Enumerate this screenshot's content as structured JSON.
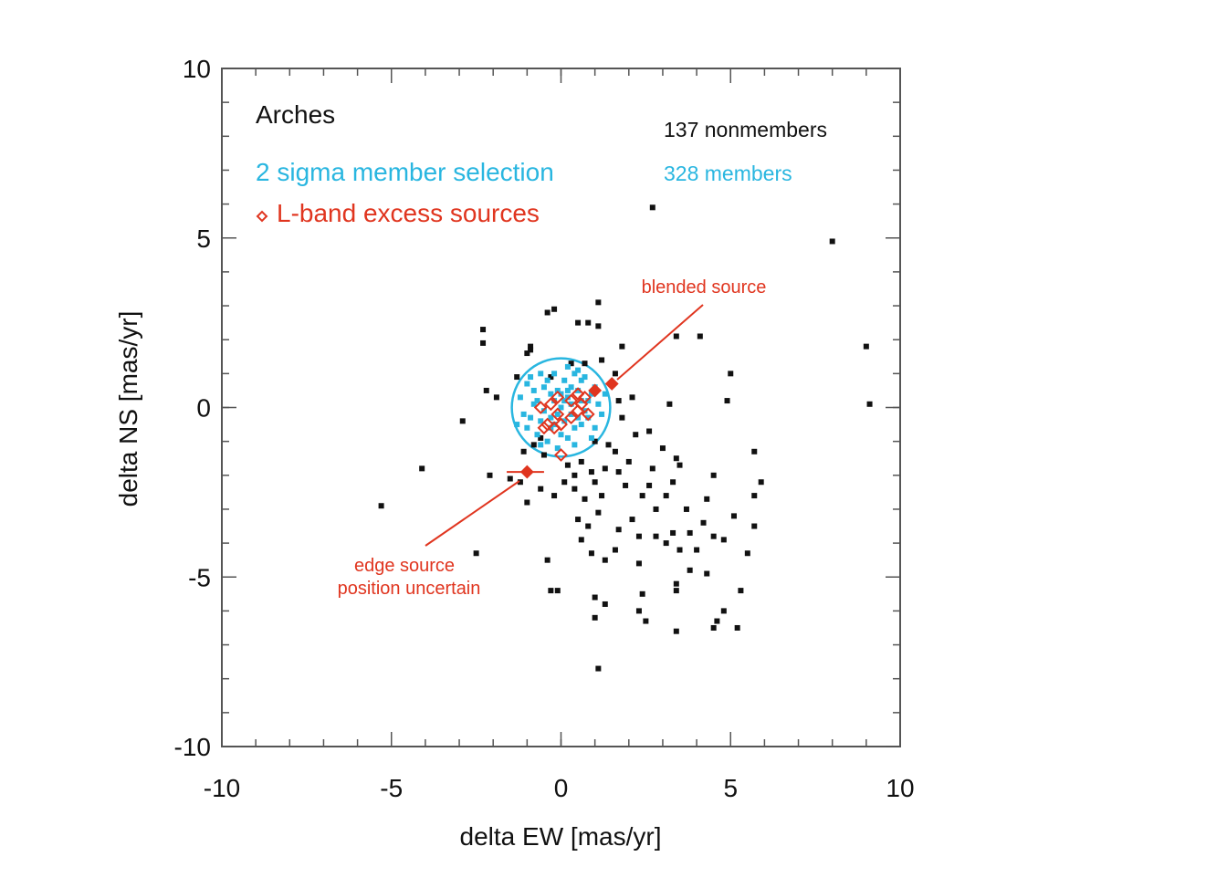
{
  "chart_data": {
    "type": "scatter",
    "title": "Arches",
    "xlabel": "delta EW [mas/yr]",
    "ylabel": "delta NS [mas/yr]",
    "xlim": [
      -10,
      10
    ],
    "ylim": [
      -10,
      10
    ],
    "xticks": [
      -10,
      -5,
      0,
      5,
      10
    ],
    "yticks": [
      -10,
      -5,
      0,
      5,
      10
    ],
    "xtick_labels": [
      "-10",
      "-5",
      "0",
      "5",
      "10"
    ],
    "ytick_labels": [
      "-10",
      "-5",
      "0",
      "5",
      "10"
    ],
    "member_circle": {
      "center": [
        0,
        0
      ],
      "radius": 1.45,
      "label": "2 sigma member selection"
    },
    "legend": {
      "nonmember_count": "137 nonmembers",
      "member_count": "328 members",
      "excess_label": "L-band excess sources"
    },
    "colors": {
      "nonmember": "#111111",
      "member": "#29b6e0",
      "excess": "#e0351f",
      "frame": "#555555"
    },
    "series": [
      {
        "name": "nonmembers",
        "marker": "square",
        "points": [
          [
            2.7,
            5.9
          ],
          [
            8.0,
            4.9
          ],
          [
            9.0,
            1.8
          ],
          [
            9.1,
            0.1
          ],
          [
            -2.3,
            2.3
          ],
          [
            -2.3,
            1.9
          ],
          [
            -0.9,
            1.8
          ],
          [
            -0.9,
            1.7
          ],
          [
            -1.0,
            1.6
          ],
          [
            -0.2,
            2.9
          ],
          [
            -0.4,
            2.8
          ],
          [
            0.5,
            2.5
          ],
          [
            0.8,
            2.5
          ],
          [
            1.1,
            3.1
          ],
          [
            1.1,
            2.4
          ],
          [
            1.8,
            1.8
          ],
          [
            3.4,
            2.1
          ],
          [
            4.1,
            2.1
          ],
          [
            5.0,
            1.0
          ],
          [
            4.9,
            0.2
          ],
          [
            3.2,
            0.1
          ],
          [
            1.6,
            1.0
          ],
          [
            2.1,
            0.3
          ],
          [
            -2.2,
            0.5
          ],
          [
            -1.9,
            0.3
          ],
          [
            -2.9,
            -0.4
          ],
          [
            -4.1,
            -1.8
          ],
          [
            -5.3,
            -2.9
          ],
          [
            -2.1,
            -2.0
          ],
          [
            -1.2,
            -2.2
          ],
          [
            -1.0,
            -2.8
          ],
          [
            -2.5,
            -4.3
          ],
          [
            -0.4,
            -4.5
          ],
          [
            -0.3,
            -5.4
          ],
          [
            -0.1,
            -5.4
          ],
          [
            1.1,
            -7.7
          ],
          [
            1.0,
            -5.6
          ],
          [
            1.3,
            -5.8
          ],
          [
            1.0,
            -6.2
          ],
          [
            2.3,
            -6.0
          ],
          [
            2.5,
            -6.3
          ],
          [
            3.4,
            -6.6
          ],
          [
            3.4,
            -5.4
          ],
          [
            4.5,
            -6.5
          ],
          [
            4.6,
            -6.3
          ],
          [
            4.8,
            -6.0
          ],
          [
            5.2,
            -6.5
          ],
          [
            5.3,
            -5.4
          ],
          [
            3.8,
            -4.8
          ],
          [
            4.3,
            -4.9
          ],
          [
            3.5,
            -4.2
          ],
          [
            4.0,
            -4.2
          ],
          [
            4.5,
            -3.8
          ],
          [
            4.8,
            -3.9
          ],
          [
            3.8,
            -3.7
          ],
          [
            3.3,
            -3.7
          ],
          [
            3.1,
            -4.0
          ],
          [
            3.7,
            -3.0
          ],
          [
            5.1,
            -3.2
          ],
          [
            5.7,
            -3.5
          ],
          [
            5.7,
            -2.6
          ],
          [
            5.9,
            -2.2
          ],
          [
            5.7,
            -1.3
          ],
          [
            4.5,
            -2.0
          ],
          [
            4.3,
            -2.7
          ],
          [
            3.5,
            -1.7
          ],
          [
            3.4,
            -1.5
          ],
          [
            3.3,
            -2.2
          ],
          [
            3.1,
            -2.6
          ],
          [
            2.6,
            -2.3
          ],
          [
            2.8,
            -3.0
          ],
          [
            2.4,
            -2.6
          ],
          [
            2.0,
            -1.6
          ],
          [
            1.6,
            -1.3
          ],
          [
            1.4,
            -1.1
          ],
          [
            1.3,
            -1.8
          ],
          [
            1.0,
            -2.2
          ],
          [
            1.2,
            -2.6
          ],
          [
            0.7,
            -2.7
          ],
          [
            0.5,
            -3.3
          ],
          [
            0.6,
            -3.9
          ],
          [
            0.9,
            -4.3
          ],
          [
            1.3,
            -4.5
          ],
          [
            1.6,
            -4.2
          ],
          [
            2.3,
            -3.8
          ],
          [
            2.3,
            -4.6
          ],
          [
            2.4,
            -5.5
          ],
          [
            3.4,
            -5.2
          ],
          [
            2.6,
            -0.7
          ],
          [
            2.2,
            -0.8
          ],
          [
            1.8,
            -0.3
          ],
          [
            0.2,
            -1.7
          ],
          [
            0.4,
            -2.0
          ],
          [
            0.6,
            -1.6
          ],
          [
            0.1,
            -2.2
          ],
          [
            0.4,
            -2.4
          ],
          [
            -0.2,
            -2.6
          ],
          [
            -0.6,
            -2.4
          ],
          [
            -0.5,
            -1.4
          ],
          [
            -0.8,
            -1.1
          ],
          [
            -1.1,
            -1.3
          ],
          [
            -1.5,
            -2.1
          ],
          [
            -0.6,
            -0.9
          ],
          [
            1.0,
            -1.0
          ],
          [
            1.7,
            -1.9
          ],
          [
            1.9,
            -2.3
          ],
          [
            2.7,
            -1.8
          ],
          [
            3.0,
            -1.2
          ],
          [
            2.1,
            -3.3
          ],
          [
            1.7,
            -3.6
          ],
          [
            0.8,
            -3.5
          ],
          [
            1.1,
            -3.1
          ],
          [
            0.9,
            -1.9
          ],
          [
            -0.3,
            0.9
          ],
          [
            0.3,
            1.3
          ],
          [
            1.2,
            1.4
          ],
          [
            0.7,
            1.3
          ],
          [
            -1.3,
            0.9
          ],
          [
            1.7,
            0.2
          ],
          [
            2.8,
            -3.8
          ],
          [
            4.2,
            -3.4
          ],
          [
            5.5,
            -4.3
          ]
        ]
      },
      {
        "name": "members",
        "marker": "square",
        "points": [
          [
            0.0,
            0.0
          ],
          [
            0.2,
            0.3
          ],
          [
            -0.2,
            0.2
          ],
          [
            0.3,
            -0.2
          ],
          [
            -0.3,
            -0.3
          ],
          [
            0.5,
            0.5
          ],
          [
            -0.5,
            0.6
          ],
          [
            0.6,
            -0.5
          ],
          [
            -0.6,
            -0.4
          ],
          [
            0.8,
            0.2
          ],
          [
            -0.8,
            0.1
          ],
          [
            0.1,
            0.8
          ],
          [
            0.0,
            -0.8
          ],
          [
            1.0,
            0.6
          ],
          [
            -1.0,
            -0.6
          ],
          [
            0.4,
            1.0
          ],
          [
            -0.4,
            -1.0
          ],
          [
            0.9,
            -0.9
          ],
          [
            -0.9,
            0.9
          ],
          [
            1.2,
            -0.2
          ],
          [
            -1.2,
            0.3
          ],
          [
            0.2,
            1.2
          ],
          [
            -0.1,
            -1.2
          ],
          [
            0.7,
            0.9
          ],
          [
            -0.7,
            -0.8
          ],
          [
            0.3,
            0.1
          ],
          [
            -0.3,
            0.4
          ],
          [
            0.1,
            -0.4
          ],
          [
            -0.1,
            0.5
          ],
          [
            0.6,
            0.2
          ],
          [
            -0.5,
            -0.1
          ],
          [
            0.4,
            -0.6
          ],
          [
            -0.4,
            0.8
          ],
          [
            1.1,
            0.1
          ],
          [
            -1.1,
            -0.2
          ],
          [
            0.8,
            -0.3
          ],
          [
            -0.8,
            0.5
          ],
          [
            0.2,
            -0.9
          ],
          [
            -0.2,
            1.0
          ],
          [
            0.5,
            1.1
          ],
          [
            -0.6,
            -1.1
          ],
          [
            1.0,
            -0.6
          ],
          [
            -1.0,
            0.7
          ],
          [
            0.0,
            0.4
          ],
          [
            0.3,
            0.6
          ],
          [
            -0.3,
            -0.6
          ],
          [
            0.7,
            -0.1
          ],
          [
            -0.7,
            0.2
          ],
          [
            0.1,
            0.2
          ],
          [
            -0.1,
            -0.2
          ],
          [
            0.9,
            0.4
          ],
          [
            -0.9,
            -0.3
          ],
          [
            0.6,
            0.8
          ],
          [
            -0.6,
            1.0
          ],
          [
            0.4,
            -1.1
          ],
          [
            1.3,
            0.4
          ],
          [
            -1.3,
            -0.5
          ],
          [
            0.2,
            0.5
          ],
          [
            -0.2,
            -0.5
          ],
          [
            0.5,
            -0.3
          ]
        ]
      },
      {
        "name": "L-band excess sources",
        "marker": "diamond",
        "points": [
          [
            -0.6,
            0.0
          ],
          [
            -0.3,
            0.1
          ],
          [
            -0.1,
            -0.2
          ],
          [
            -0.4,
            -0.5
          ],
          [
            -0.2,
            -0.6
          ],
          [
            0.0,
            -0.5
          ],
          [
            0.3,
            0.2
          ],
          [
            0.5,
            0.4
          ],
          [
            0.6,
            0.1
          ],
          [
            0.8,
            -0.2
          ],
          [
            0.3,
            -0.3
          ],
          [
            -0.5,
            -0.6
          ],
          [
            0.5,
            -0.1
          ],
          [
            -0.1,
            0.3
          ],
          [
            0.7,
            0.3
          ],
          [
            0.0,
            -1.4
          ],
          [
            1.0,
            0.5
          ],
          [
            1.5,
            0.7
          ],
          [
            -1.0,
            -1.9
          ]
        ],
        "filled": [
          16,
          17,
          18
        ]
      }
    ],
    "annotations": [
      {
        "text": "blended source"
      },
      {
        "text": "edge source"
      },
      {
        "text": "position uncertain"
      }
    ]
  }
}
